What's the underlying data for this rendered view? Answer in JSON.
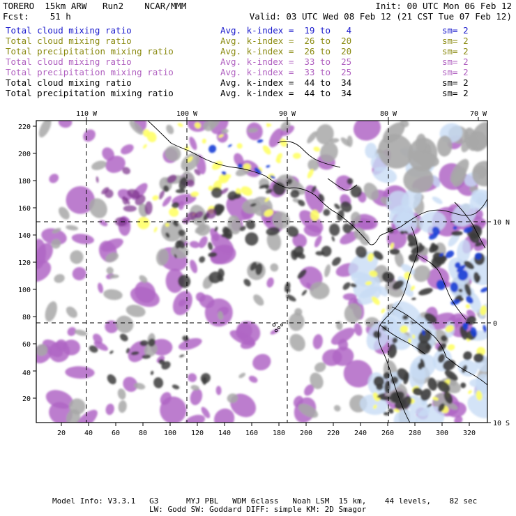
{
  "header": {
    "model": "TORERO  15km ARW   Run2    NCAR/MMM",
    "init": "Init: 00 UTC Mon 06 Feb 12",
    "fcst": "Fcst:    51 h",
    "valid": "Valid: 03 UTC Wed 08 Feb 12 (21 CST Tue 07 Feb 12)"
  },
  "fields": [
    {
      "name": "Total cloud mixing ratio",
      "kindex": "Avg. k-index =  19 to   4",
      "sm": "sm= 2",
      "color": "#1a1acc"
    },
    {
      "name": "Total cloud mixing ratio",
      "kindex": "Avg. k-index =  26 to  20",
      "sm": "sm= 2",
      "color": "#8a8a10"
    },
    {
      "name": "Total precipitation mixing ratio",
      "kindex": "Avg. k-index =  26 to  20",
      "sm": "sm= 2",
      "color": "#8a8a10"
    },
    {
      "name": "Total cloud mixing ratio",
      "kindex": "Avg. k-index =  33 to  25",
      "sm": "sm= 2",
      "color": "#b060c0"
    },
    {
      "name": "Total precipitation mixing ratio",
      "kindex": "Avg. k-index =  33 to  25",
      "sm": "sm= 2",
      "color": "#b060c0"
    },
    {
      "name": "Total cloud mixing ratio",
      "kindex": "Avg. k-index =  44 to  34",
      "sm": "sm= 2",
      "color": "#000000"
    },
    {
      "name": "Total precipitation mixing ratio",
      "kindex": "Avg. k-index =  44 to  34",
      "sm": "sm= 2",
      "color": "#000000"
    }
  ],
  "axes": {
    "lon_labels": [
      "110 W",
      "100 W",
      "90 W",
      "80 W",
      "70 W"
    ],
    "lat_labels": [
      "10 N",
      "0",
      "10 S"
    ],
    "x_ticks": [
      "20",
      "40",
      "60",
      "80",
      "100",
      "120",
      "140",
      "160",
      "180",
      "200",
      "220",
      "240",
      "260",
      "280",
      "300",
      "320"
    ],
    "y_ticks": [
      "20",
      "40",
      "60",
      "80",
      "100",
      "120",
      "140",
      "160",
      "180",
      "200",
      "220"
    ]
  },
  "colors": {
    "blue": "#1a3fd6",
    "light_blue": "#c8dcf5",
    "yellow": "#ffff66",
    "purple": "#b066c6",
    "dark_purple": "#7a2f8a",
    "gray": "#a8a8a8",
    "dark_gray": "#3c3c3c"
  },
  "footer": {
    "line1": "Model Info: V3.3.1   G3      MYJ PBL   WDM 6class   Noah LSM  15 km,    44 levels,    82 sec",
    "line2": "LW: Godd SW: Goddard DIFF: simple KM: 2D Smagor"
  }
}
